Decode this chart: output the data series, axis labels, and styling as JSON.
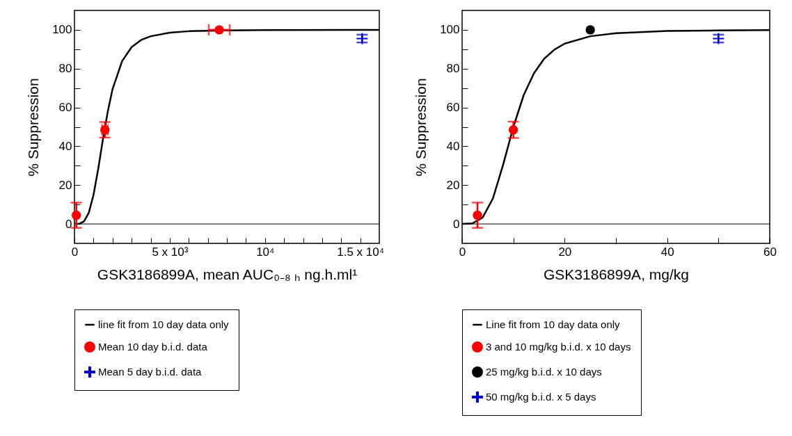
{
  "chart_data": [
    {
      "type": "scatter",
      "xlabel": "GSK3186899A, mean AUC₀₋₈ ₕ ng.h.ml¹",
      "ylabel": "% Suppression",
      "xlim": [
        0,
        16000
      ],
      "ylim": [
        -10,
        110
      ],
      "xticks": [
        0,
        {
          "value": 1000,
          "label": null
        },
        {
          "value": 2000,
          "label": null
        },
        {
          "value": 3000,
          "label": null
        },
        {
          "value": 4000,
          "label": null
        },
        {
          "value": 5000,
          "label": "5 x 10³"
        },
        {
          "value": 6000,
          "label": null
        },
        {
          "value": 7000,
          "label": null
        },
        {
          "value": 8000,
          "label": null
        },
        {
          "value": 9000,
          "label": null
        },
        {
          "value": 10000,
          "label": "10⁴"
        },
        {
          "value": 11000,
          "label": null
        },
        {
          "value": 12000,
          "label": null
        },
        {
          "value": 13000,
          "label": null
        },
        {
          "value": 14000,
          "label": null
        },
        {
          "value": 15000,
          "label": "1.5 x 10⁴"
        }
      ],
      "yticks": [
        0,
        {
          "value": 10,
          "label": null
        },
        20,
        {
          "value": 30,
          "label": null
        },
        40,
        {
          "value": 50,
          "label": null
        },
        60,
        {
          "value": 70,
          "label": null
        },
        80,
        {
          "value": 90,
          "label": null
        },
        100
      ],
      "legend": "bottom",
      "ref_lines": [
        {
          "axis": "y",
          "value": 0
        }
      ],
      "series": [
        {
          "name": "line fit from 10 day data only",
          "type": "line",
          "color": "#000000",
          "x": [
            0,
            250,
            500,
            750,
            1000,
            1250,
            1500,
            1750,
            2000,
            2500,
            3000,
            3500,
            4000,
            5000,
            6000,
            8000,
            10000,
            16000
          ],
          "values": [
            0,
            0.1,
            1.3,
            5.7,
            15,
            28.6,
            44,
            58,
            69.5,
            83.9,
            91.1,
            94.8,
            96.7,
            98.5,
            99.3,
            99.7,
            99.9,
            100
          ]
        },
        {
          "name": "Mean 10 day  b.i.d. data",
          "marker": "circle",
          "color": "#ff0000",
          "x": [
            100,
            1600,
            7600
          ],
          "values": [
            4.5,
            48.5,
            100
          ],
          "errors": [
            6.5,
            4,
            null
          ],
          "xerrors": [
            null,
            150,
            550
          ]
        },
        {
          "name": "Mean 5 day b.i.d. data",
          "marker": "cross",
          "color": "#0000cc",
          "x": [
            15100
          ],
          "values": [
            95.5
          ],
          "errors": [
            2
          ]
        }
      ]
    },
    {
      "type": "scatter",
      "xlabel": "GSK3186899A, mg/kg",
      "ylabel": "% Suppression",
      "xlim": [
        0,
        60
      ],
      "ylim": [
        -10,
        110
      ],
      "xticks": [
        0,
        {
          "value": 10,
          "label": null
        },
        20,
        {
          "value": 30,
          "label": null
        },
        40,
        {
          "value": 50,
          "label": null
        },
        60
      ],
      "yticks": [
        0,
        {
          "value": 10,
          "label": null
        },
        20,
        {
          "value": 30,
          "label": null
        },
        40,
        {
          "value": 50,
          "label": null
        },
        60,
        {
          "value": 70,
          "label": null
        },
        80,
        {
          "value": 90,
          "label": null
        },
        100
      ],
      "legend": "bottom",
      "ref_lines": [
        {
          "axis": "y",
          "value": 0
        }
      ],
      "series": [
        {
          "name": "Line fit from 10 day data only",
          "type": "line",
          "color": "#000000",
          "x": [
            0,
            2,
            4,
            6,
            8,
            10,
            12,
            14,
            16,
            18,
            20,
            25,
            30,
            40,
            50,
            60
          ],
          "values": [
            0,
            0.3,
            3.3,
            13.1,
            30.5,
            50,
            66.3,
            77.6,
            85.1,
            89.8,
            92.9,
            96.7,
            98.3,
            99.4,
            99.7,
            99.9
          ]
        },
        {
          "name": "3 and 10 mg/kg b.i.d. x 10 days",
          "marker": "circle",
          "color": "#ff0000",
          "x": [
            3,
            10
          ],
          "values": [
            4.5,
            48.5
          ],
          "errors": [
            6.5,
            4.2
          ]
        },
        {
          "name": "25 mg/kg b.i.d. x 10 days",
          "marker": "circle",
          "color": "#000000",
          "x": [
            25
          ],
          "values": [
            100
          ]
        },
        {
          "name": "50 mg/kg  b.i.d. x 5 days",
          "marker": "cross",
          "color": "#0000cc",
          "x": [
            50
          ],
          "values": [
            95.5
          ],
          "errors": [
            2
          ]
        }
      ]
    }
  ]
}
